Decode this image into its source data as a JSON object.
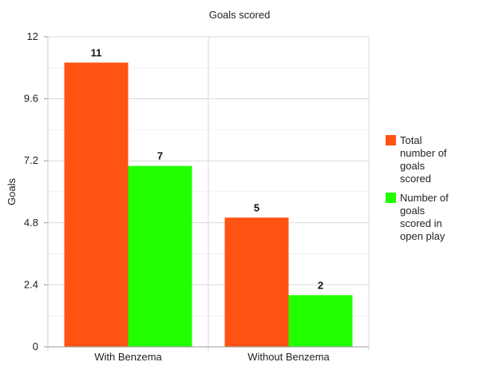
{
  "chart_data": {
    "type": "bar",
    "title": "Goals scored",
    "xlabel": "",
    "ylabel": "Goals",
    "ylim": [
      0,
      12
    ],
    "yticks": [
      "0",
      "2.4",
      "4.8",
      "7.2",
      "9.6",
      "12"
    ],
    "categories": [
      "With Benzema",
      "Without Benzema"
    ],
    "series": [
      {
        "name": "Total number of goals scored",
        "values": [
          11,
          5
        ],
        "color": "#ff5314"
      },
      {
        "name": "Number of goals scored in open play",
        "values": [
          7,
          2
        ],
        "color": "#22ff00"
      }
    ],
    "legend_position": "right",
    "grid": true
  }
}
